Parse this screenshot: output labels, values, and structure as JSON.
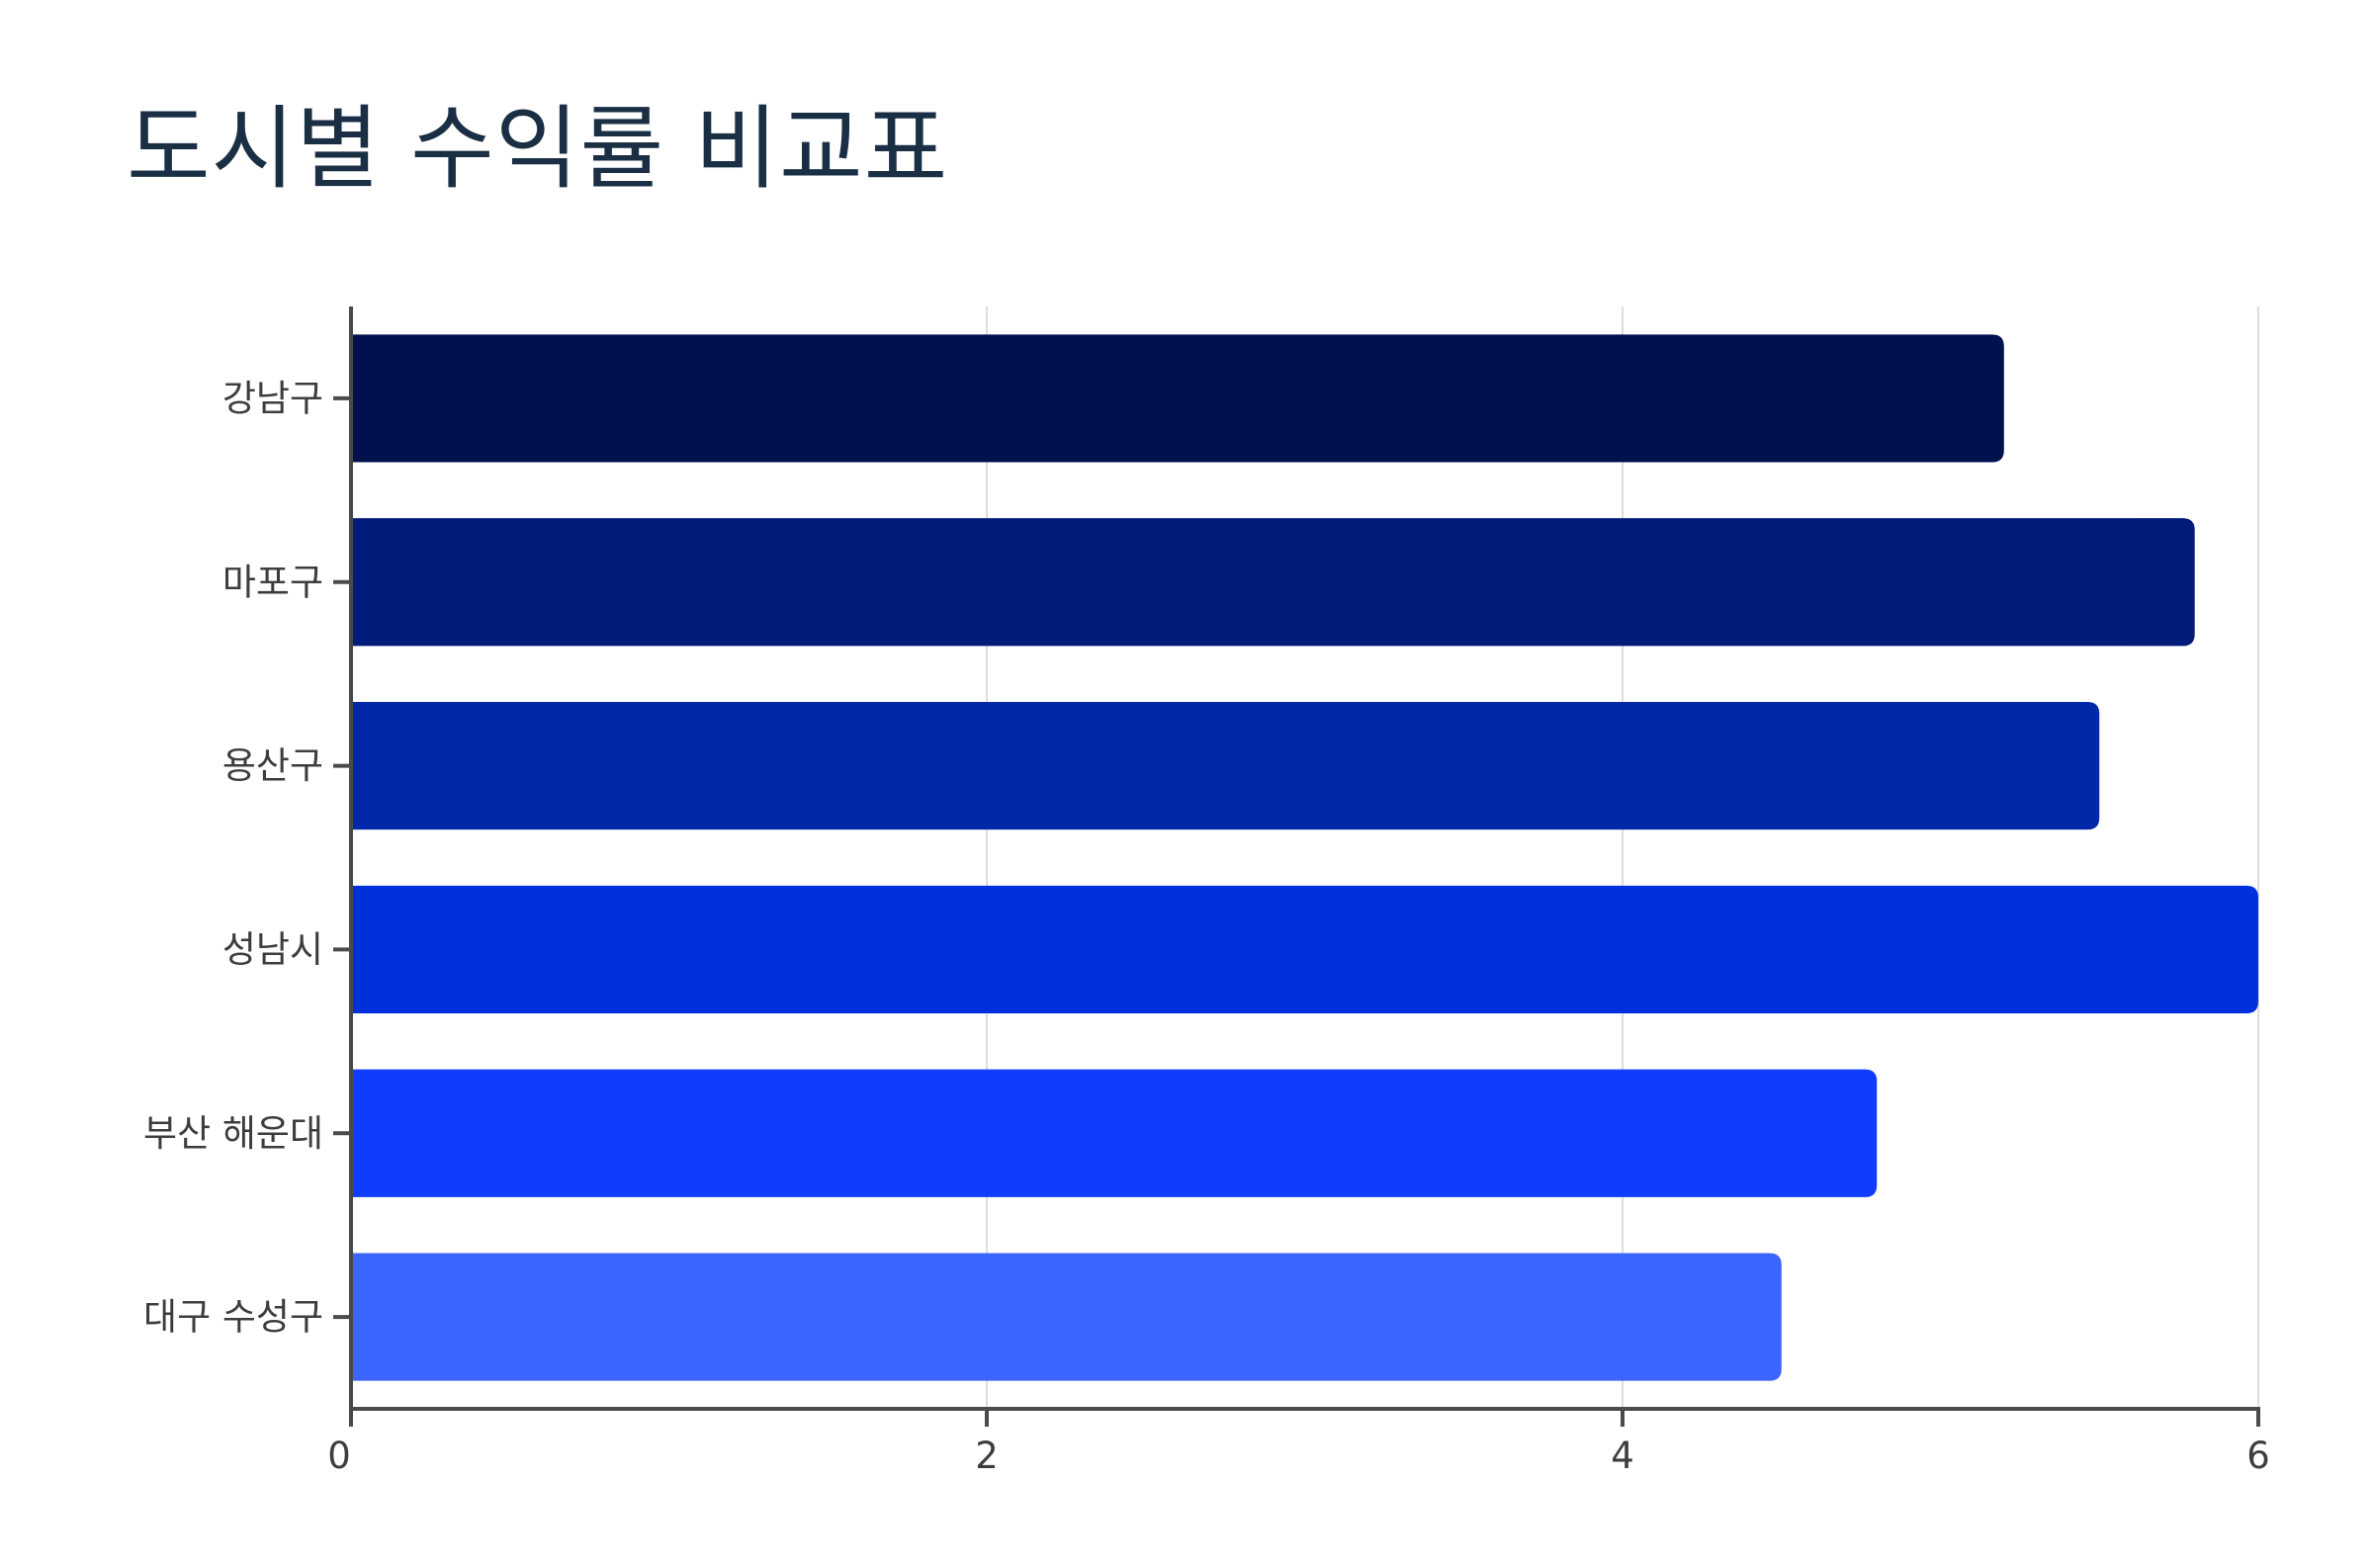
{
  "chart_data": {
    "type": "bar",
    "orientation": "horizontal",
    "title": "도시별 수익률 비교표",
    "xlabel": "",
    "ylabel": "",
    "categories": [
      "강남구",
      "마포구",
      "용산구",
      "성남시",
      "부산 해운대",
      "대구 수성구"
    ],
    "values": [
      5.2,
      5.8,
      5.5,
      6.0,
      4.8,
      4.5
    ],
    "colors": [
      "#00114d",
      "#001b7a",
      "#0028a8",
      "#0030dc",
      "#0f3cff",
      "#3c64ff"
    ],
    "xlim": [
      0,
      6
    ],
    "xticks": [
      "0",
      "2",
      "4",
      "6"
    ],
    "grid": "vertical"
  }
}
